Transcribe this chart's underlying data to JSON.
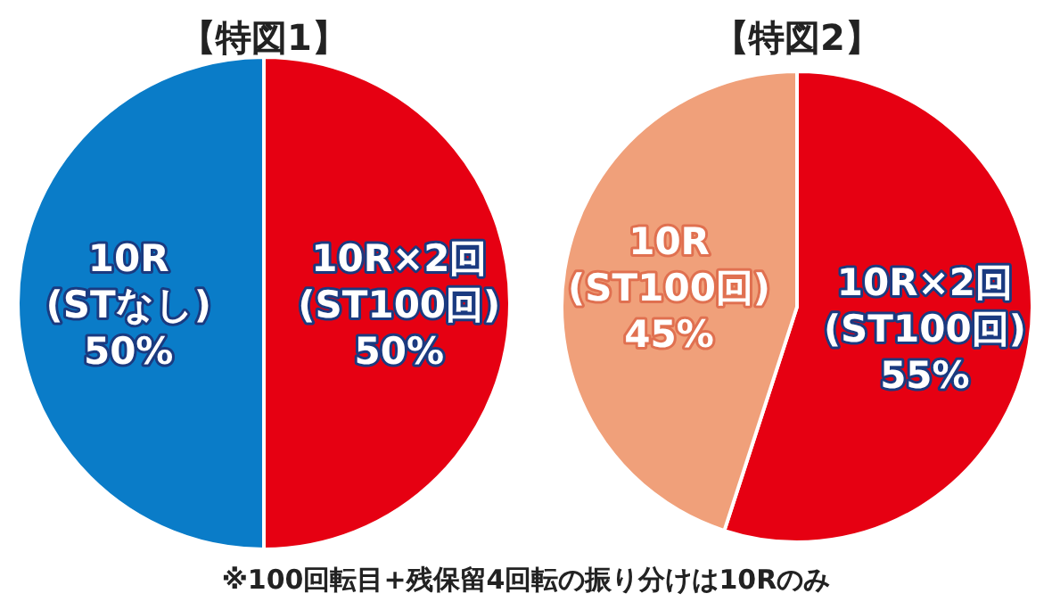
{
  "chart_data": [
    {
      "type": "pie",
      "title": "【特図1】",
      "categories": [
        "10R×2回\n(ST100回)",
        "10R\n(STなし)"
      ],
      "values": [
        50,
        50
      ],
      "colors": [
        "#e60012",
        "#0a7cc8"
      ],
      "value_labels": [
        "50%",
        "50%"
      ]
    },
    {
      "type": "pie",
      "title": "【特図2】",
      "categories": [
        "10R×2回\n(ST100回)",
        "10R\n(ST100回)"
      ],
      "values": [
        55,
        45
      ],
      "colors": [
        "#e60012",
        "#f0a07a"
      ],
      "value_labels": [
        "55%",
        "45%"
      ],
      "annotations": [
        "※100回転目+残保留4回転の振り分けは10Rのみ"
      ]
    }
  ]
}
